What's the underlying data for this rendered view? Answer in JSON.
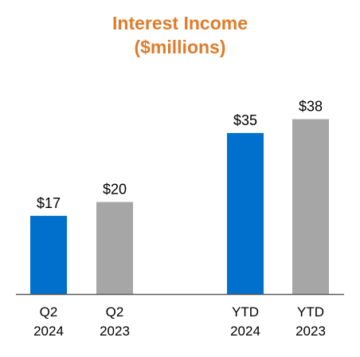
{
  "chart_data": {
    "type": "bar",
    "title": "Interest Income",
    "subtitle": "($millions)",
    "categories": [
      {
        "line1": "Q2",
        "line2": "2024"
      },
      {
        "line1": "Q2",
        "line2": "2023"
      },
      {
        "line1": "YTD",
        "line2": "2024"
      },
      {
        "line1": "YTD",
        "line2": "2023"
      }
    ],
    "values": [
      17,
      20,
      35,
      38
    ],
    "value_labels": [
      "$17",
      "$20",
      "$35",
      "$38"
    ],
    "bar_colors": [
      "#0070CC",
      "#A6A6A6",
      "#0070CC",
      "#A6A6A6"
    ],
    "ylim": [
      0,
      40
    ],
    "grid": false,
    "legend": "none"
  },
  "colors": {
    "title": "#E07B2A",
    "axis": "#595959",
    "text": "#000000"
  }
}
